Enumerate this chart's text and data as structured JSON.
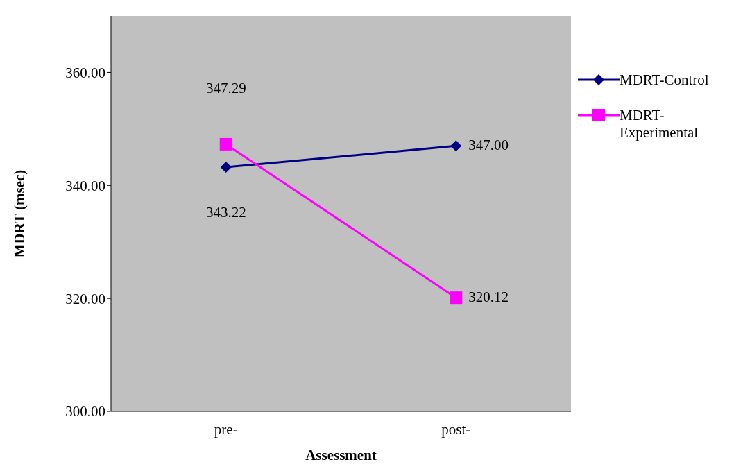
{
  "chart_data": {
    "type": "line",
    "xlabel": "Assessment",
    "ylabel": "MDRT (msec)",
    "categories": [
      "pre-",
      "post-"
    ],
    "series": [
      {
        "name": "MDRT-Control",
        "color": "#000080",
        "marker": "diamond",
        "values": [
          343.22,
          347.0
        ],
        "value_labels": [
          "343.22",
          "347.00"
        ]
      },
      {
        "name": "MDRT-Experimental",
        "color": "#ff00ff",
        "marker": "square",
        "values": [
          347.29,
          320.12
        ],
        "value_labels": [
          "347.29",
          "320.12"
        ]
      }
    ],
    "ylim": [
      300,
      370
    ],
    "yticks": [
      {
        "value": 300,
        "label": "300.00"
      },
      {
        "value": 320,
        "label": "320.00"
      },
      {
        "value": 340,
        "label": "340.00"
      },
      {
        "value": 360,
        "label": "360.00"
      }
    ],
    "grid": false,
    "legend": "right",
    "line_style": "solid"
  }
}
